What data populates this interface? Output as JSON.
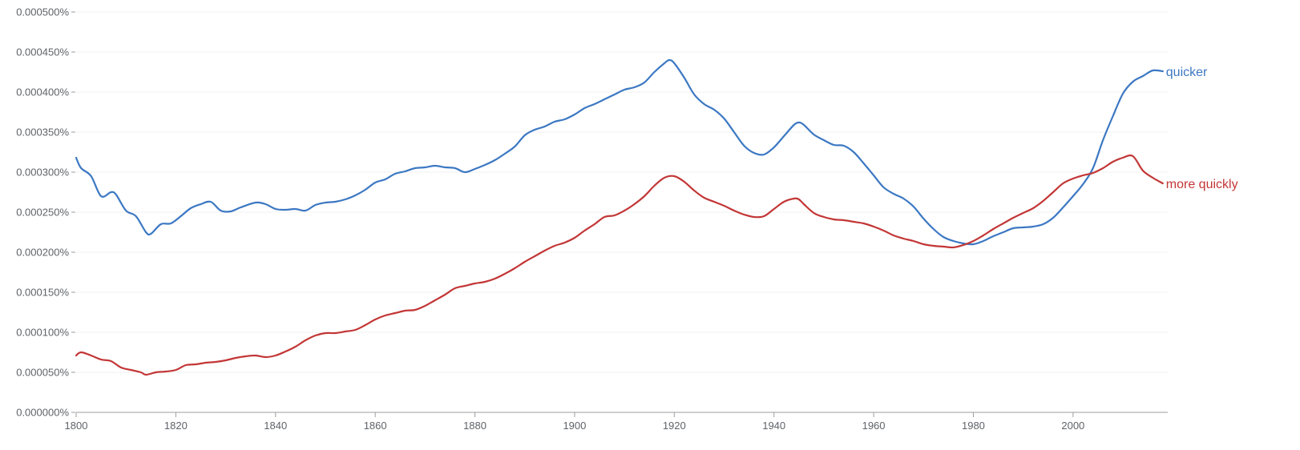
{
  "chart_data": {
    "type": "line",
    "title": "",
    "xlabel": "",
    "ylabel": "",
    "xlim": [
      1800,
      2019
    ],
    "ylim": [
      0,
      0.0005
    ],
    "grid": true,
    "x_ticks": [
      1800,
      1820,
      1840,
      1860,
      1880,
      1900,
      1920,
      1940,
      1960,
      1980,
      2000
    ],
    "y_ticks": [
      0,
      5e-05,
      0.0001,
      0.00015,
      0.0002,
      0.00025,
      0.0003,
      0.00035,
      0.0004,
      0.00045,
      0.0005
    ],
    "x_tick_labels": [
      "1800",
      "1820",
      "1840",
      "1860",
      "1880",
      "1900",
      "1920",
      "1940",
      "1960",
      "1980",
      "2000"
    ],
    "y_tick_labels": [
      "0.000000%",
      "0.000050%",
      "0.000100%",
      "0.000150%",
      "0.000200%",
      "0.000250%",
      "0.000300%",
      "0.000350%",
      "0.000400%",
      "0.000450%",
      "0.000500%"
    ],
    "series": [
      {
        "name": "quicker",
        "color": "#3c78c3",
        "x": [
          1800,
          1801,
          1803,
          1805,
          1807,
          1808,
          1810,
          1812,
          1814,
          1815,
          1817,
          1819,
          1821,
          1823,
          1825,
          1827,
          1829,
          1831,
          1833,
          1836,
          1838,
          1840,
          1842,
          1844,
          1846,
          1848,
          1850,
          1852,
          1854,
          1856,
          1858,
          1860,
          1862,
          1864,
          1866,
          1868,
          1870,
          1872,
          1874,
          1876,
          1878,
          1880,
          1882,
          1884,
          1886,
          1888,
          1890,
          1892,
          1894,
          1896,
          1898,
          1900,
          1902,
          1904,
          1906,
          1908,
          1910,
          1912,
          1914,
          1916,
          1918,
          1919,
          1920,
          1922,
          1924,
          1926,
          1928,
          1930,
          1932,
          1934,
          1936,
          1938,
          1940,
          1942,
          1944,
          1945,
          1946,
          1948,
          1950,
          1952,
          1954,
          1956,
          1958,
          1960,
          1962,
          1964,
          1966,
          1968,
          1970,
          1972,
          1974,
          1976,
          1978,
          1980,
          1982,
          1984,
          1986,
          1988,
          1990,
          1992,
          1994,
          1996,
          1998,
          2000,
          2002,
          2004,
          2006,
          2008,
          2010,
          2012,
          2014,
          2016,
          2018
        ],
        "values": [
          0.000318,
          0.000305,
          0.000295,
          0.00027,
          0.000275,
          0.000272,
          0.000252,
          0.000245,
          0.000225,
          0.000223,
          0.000235,
          0.000236,
          0.000245,
          0.000255,
          0.00026,
          0.000263,
          0.000252,
          0.000251,
          0.000256,
          0.000262,
          0.00026,
          0.000254,
          0.000253,
          0.000254,
          0.000252,
          0.000259,
          0.000262,
          0.000263,
          0.000266,
          0.000271,
          0.000278,
          0.000287,
          0.000291,
          0.000298,
          0.000301,
          0.000305,
          0.000306,
          0.000308,
          0.000306,
          0.000305,
          0.0003,
          0.000304,
          0.000309,
          0.000315,
          0.000323,
          0.000332,
          0.000346,
          0.000353,
          0.000357,
          0.000363,
          0.000366,
          0.000372,
          0.00038,
          0.000385,
          0.000391,
          0.000397,
          0.000403,
          0.000406,
          0.000412,
          0.000425,
          0.000436,
          0.00044,
          0.000436,
          0.000418,
          0.000397,
          0.000385,
          0.000378,
          0.000367,
          0.00035,
          0.000333,
          0.000324,
          0.000322,
          0.000331,
          0.000345,
          0.000359,
          0.000362,
          0.000359,
          0.000347,
          0.00034,
          0.000334,
          0.000333,
          0.000325,
          0.000311,
          0.000296,
          0.000281,
          0.000273,
          0.000267,
          0.000257,
          0.000242,
          0.000229,
          0.000219,
          0.000214,
          0.000211,
          0.00021,
          0.000214,
          0.00022,
          0.000225,
          0.00023,
          0.000231,
          0.000232,
          0.000235,
          0.000243,
          0.000256,
          0.00027,
          0.000285,
          0.000305,
          0.00034,
          0.00037,
          0.000398,
          0.000413,
          0.00042,
          0.000427,
          0.000426
        ]
      },
      {
        "name": "more quickly",
        "color": "#c33636",
        "x": [
          1800,
          1801,
          1803,
          1805,
          1807,
          1809,
          1811,
          1813,
          1814,
          1816,
          1818,
          1820,
          1822,
          1824,
          1826,
          1828,
          1830,
          1832,
          1834,
          1836,
          1838,
          1840,
          1842,
          1844,
          1846,
          1848,
          1850,
          1852,
          1854,
          1856,
          1858,
          1860,
          1862,
          1864,
          1866,
          1868,
          1870,
          1872,
          1874,
          1876,
          1878,
          1880,
          1882,
          1884,
          1886,
          1888,
          1890,
          1892,
          1894,
          1896,
          1898,
          1900,
          1902,
          1904,
          1906,
          1908,
          1910,
          1912,
          1914,
          1916,
          1918,
          1920,
          1922,
          1924,
          1926,
          1928,
          1930,
          1932,
          1934,
          1936,
          1938,
          1940,
          1942,
          1944,
          1945,
          1946,
          1948,
          1950,
          1952,
          1954,
          1956,
          1958,
          1960,
          1962,
          1964,
          1966,
          1968,
          1970,
          1972,
          1974,
          1976,
          1978,
          1980,
          1982,
          1984,
          1986,
          1988,
          1990,
          1992,
          1994,
          1996,
          1998,
          2000,
          2002,
          2004,
          2006,
          2008,
          2010,
          2012,
          2014,
          2016,
          2018
        ],
        "values": [
          7.1e-05,
          7.5e-05,
          7.1e-05,
          6.6e-05,
          6.4e-05,
          5.6e-05,
          5.3e-05,
          5e-05,
          4.7e-05,
          5e-05,
          5.1e-05,
          5.3e-05,
          5.9e-05,
          6e-05,
          6.2e-05,
          6.3e-05,
          6.5e-05,
          6.8e-05,
          7e-05,
          7.1e-05,
          6.9e-05,
          7.1e-05,
          7.6e-05,
          8.2e-05,
          9e-05,
          9.6e-05,
          9.9e-05,
          9.9e-05,
          0.000101,
          0.000103,
          0.000109,
          0.000116,
          0.000121,
          0.000124,
          0.000127,
          0.000128,
          0.000133,
          0.00014,
          0.000147,
          0.000155,
          0.000158,
          0.000161,
          0.000163,
          0.000167,
          0.000173,
          0.00018,
          0.000188,
          0.000195,
          0.000202,
          0.000208,
          0.000212,
          0.000218,
          0.000227,
          0.000235,
          0.000244,
          0.000246,
          0.000252,
          0.00026,
          0.00027,
          0.000283,
          0.000293,
          0.000295,
          0.000288,
          0.000277,
          0.000268,
          0.000263,
          0.000258,
          0.000252,
          0.000247,
          0.000244,
          0.000245,
          0.000254,
          0.000263,
          0.000267,
          0.000266,
          0.00026,
          0.000249,
          0.000244,
          0.000241,
          0.00024,
          0.000238,
          0.000236,
          0.000232,
          0.000227,
          0.000221,
          0.000217,
          0.000214,
          0.00021,
          0.000208,
          0.000207,
          0.000206,
          0.000209,
          0.000214,
          0.000221,
          0.000229,
          0.000236,
          0.000243,
          0.000249,
          0.000255,
          0.000264,
          0.000275,
          0.000286,
          0.000292,
          0.000296,
          0.000299,
          0.000305,
          0.000313,
          0.000318,
          0.00032,
          0.000302,
          0.000293,
          0.000286
        ]
      }
    ]
  }
}
